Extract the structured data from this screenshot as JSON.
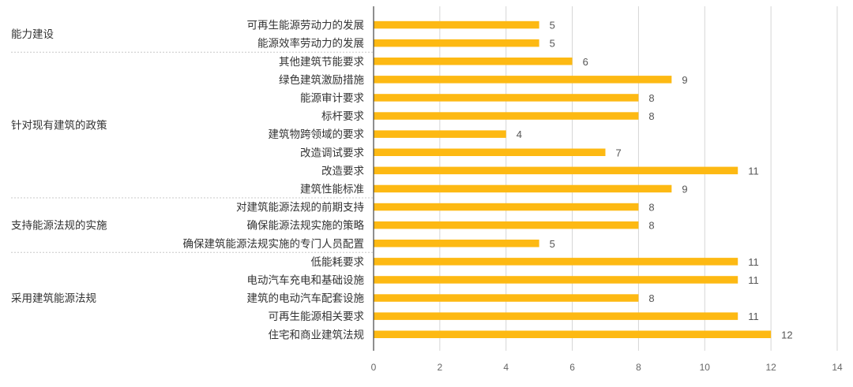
{
  "chart_data": {
    "type": "bar",
    "orientation": "horizontal",
    "xlim": [
      0,
      14
    ],
    "xticks": [
      0,
      2,
      4,
      6,
      8,
      10,
      12,
      14
    ],
    "grid": true,
    "bar_color": "#FDB913",
    "groups": [
      {
        "name": "能力建设",
        "categories": [
          "可再生能源劳动力的发展",
          "能源效率劳动力的发展"
        ],
        "values": [
          5,
          5
        ]
      },
      {
        "name": "针对现有建筑的政策",
        "categories": [
          "其他建筑节能要求",
          "绿色建筑激励措施",
          "能源审计要求",
          "标杆要求",
          "建筑物跨领域的要求",
          "改造调试要求",
          "改造要求",
          "建筑性能标准"
        ],
        "values": [
          6,
          9,
          8,
          8,
          4,
          7,
          11,
          9
        ]
      },
      {
        "name": "支持能源法规的实施",
        "categories": [
          "对建筑能源法规的前期支持",
          "确保能源法规实施的策略",
          "确保建筑能源法规实施的专门人员配置"
        ],
        "values": [
          8,
          8,
          5
        ]
      },
      {
        "name": "采用建筑能源法规",
        "categories": [
          "低能耗要求",
          "电动汽车充电和基础设施",
          "建筑的电动汽车配套设施",
          "可再生能源相关要求",
          "住宅和商业建筑法规"
        ],
        "values": [
          11,
          11,
          8,
          11,
          12
        ]
      }
    ]
  }
}
